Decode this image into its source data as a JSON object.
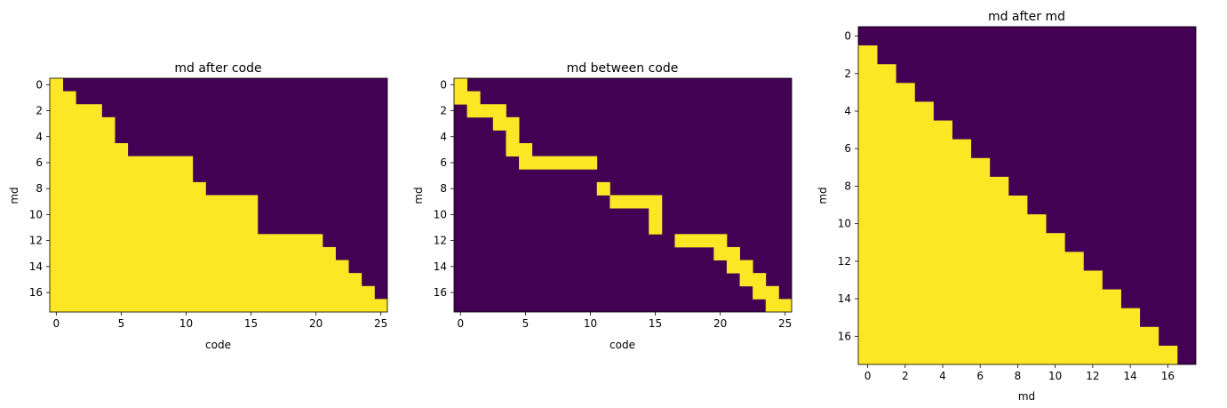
{
  "colors": {
    "zero": "#440154",
    "one": "#fde725"
  },
  "chart_data": [
    {
      "type": "heatmap",
      "title": "md after code",
      "xlabel": "code",
      "ylabel": "md",
      "n_rows": 18,
      "n_cols": 26,
      "xticks": [
        0,
        5,
        10,
        15,
        20,
        25
      ],
      "yticks": [
        0,
        2,
        4,
        6,
        8,
        10,
        12,
        14,
        16
      ],
      "fill_rule": "cells (row, col) with col < row_limits[row] have value 1, all others 0",
      "row_limits": [
        1,
        2,
        4,
        5,
        5,
        6,
        11,
        11,
        12,
        16,
        16,
        16,
        21,
        22,
        23,
        24,
        25,
        26
      ]
    },
    {
      "type": "heatmap",
      "title": "md between code",
      "xlabel": "code",
      "ylabel": "md",
      "n_rows": 18,
      "n_cols": 26,
      "xticks": [
        0,
        5,
        10,
        15,
        20,
        25
      ],
      "yticks": [
        0,
        2,
        4,
        6,
        8,
        10,
        12,
        14,
        16
      ],
      "fill_rule": "cells (row, col) with row_starts[row] <= col < row_limits[row] have value 1, all others 0",
      "row_starts": [
        0,
        0,
        1,
        3,
        4,
        4,
        5,
        11,
        11,
        12,
        15,
        15,
        17,
        20,
        21,
        22,
        23,
        24
      ],
      "row_limits": [
        1,
        2,
        4,
        5,
        5,
        6,
        11,
        11,
        12,
        16,
        16,
        16,
        21,
        22,
        23,
        24,
        25,
        26
      ]
    },
    {
      "type": "heatmap",
      "title": "md after md",
      "xlabel": "md",
      "ylabel": "md",
      "n_rows": 18,
      "n_cols": 18,
      "xticks": [
        0,
        2,
        4,
        6,
        8,
        10,
        12,
        14,
        16
      ],
      "yticks": [
        0,
        2,
        4,
        6,
        8,
        10,
        12,
        14,
        16
      ],
      "fill_rule": "cells (row, col) with col < row_limits[row] have value 1, all others 0",
      "row_limits": [
        0,
        1,
        2,
        3,
        4,
        5,
        6,
        7,
        8,
        9,
        10,
        11,
        12,
        13,
        14,
        15,
        16,
        17
      ]
    }
  ]
}
